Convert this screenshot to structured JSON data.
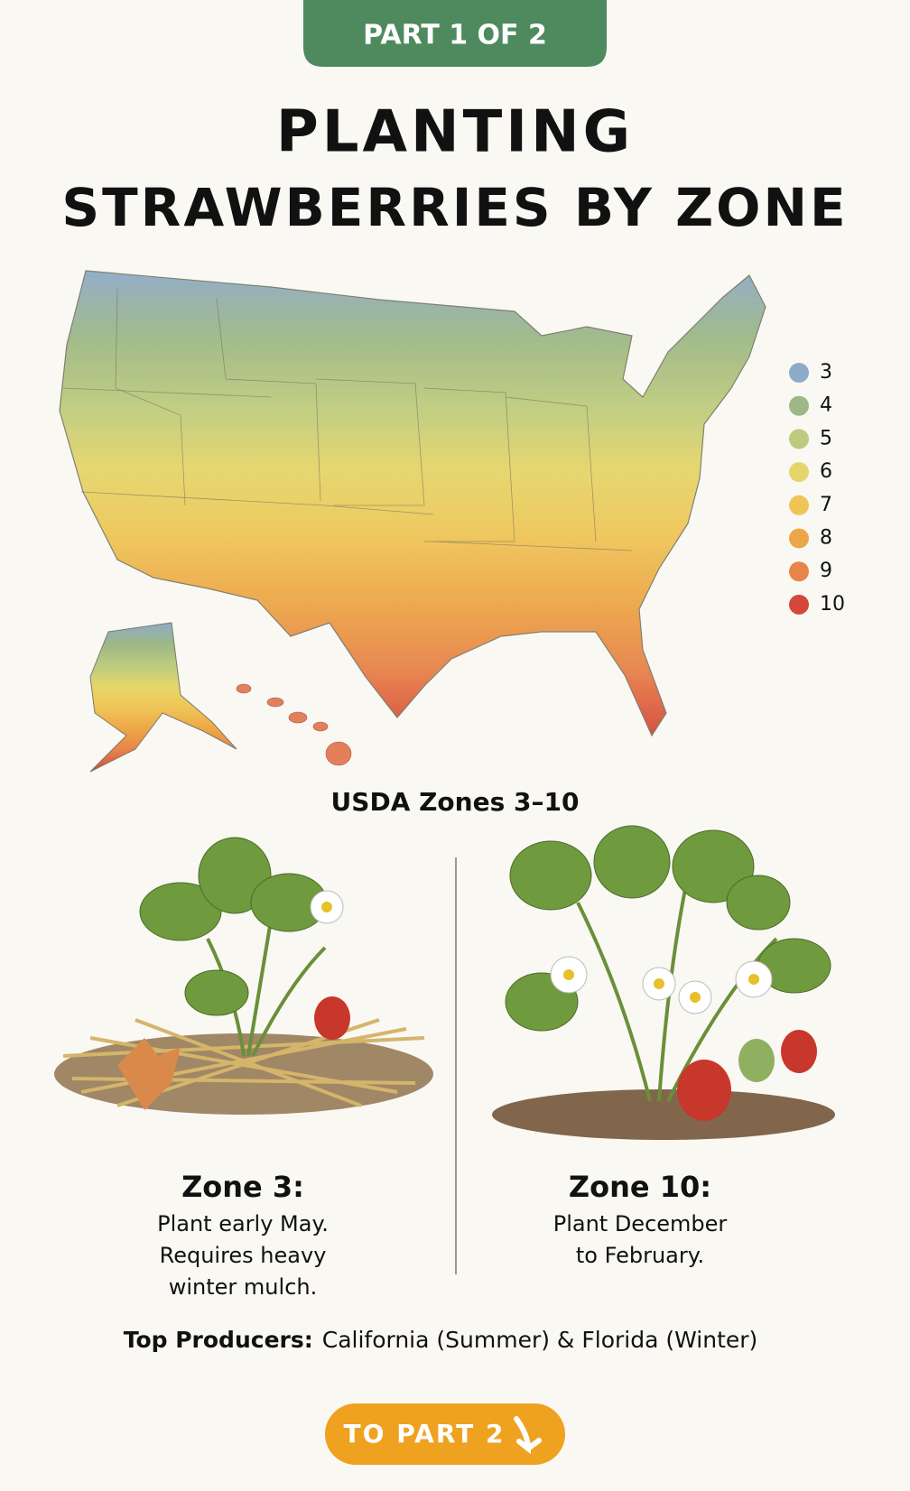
{
  "badge": "PART 1 OF 2",
  "title": [
    "PLANTING",
    "STRAWBERRIES BY ZONE"
  ],
  "map": {
    "legend": [
      {
        "label": "3",
        "color": "#8eabc8"
      },
      {
        "label": "4",
        "color": "#9db886"
      },
      {
        "label": "5",
        "color": "#bccb7f"
      },
      {
        "label": "6",
        "color": "#e6d66a"
      },
      {
        "label": "7",
        "color": "#efc558"
      },
      {
        "label": "8",
        "color": "#eda647"
      },
      {
        "label": "9",
        "color": "#e8834a"
      },
      {
        "label": "10",
        "color": "#d4483a"
      }
    ]
  },
  "caption": "USDA Zones 3–10",
  "panels": [
    {
      "heading": "Zone 3:",
      "lines": [
        "Plant early May.",
        "Requires heavy",
        "winter mulch."
      ]
    },
    {
      "heading": "Zone 10:",
      "lines": [
        "Plant December",
        "to February."
      ]
    }
  ],
  "footer": {
    "label": "Top Producers:",
    "text": "California (Summer) & Florida (Winter)"
  },
  "button": "TO PART 2"
}
